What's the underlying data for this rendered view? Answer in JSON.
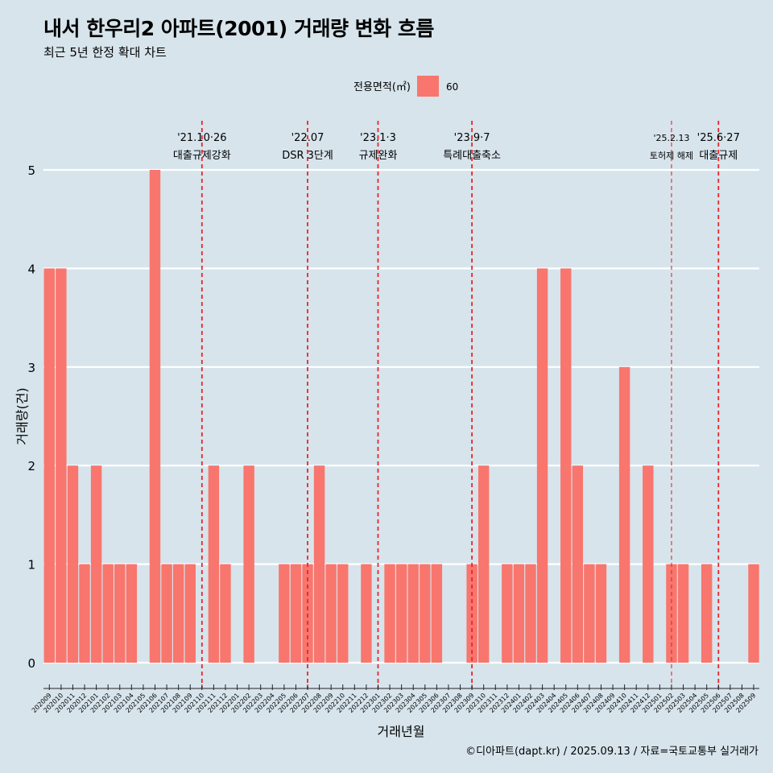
{
  "chart_data": {
    "type": "bar",
    "title": "내서 한우리2 아파트(2001) 거래량 변화 흐름",
    "subtitle": "최근 5년 한정 확대 차트",
    "xlabel": "거래년월",
    "ylabel": "거래량(건)",
    "ylim": [
      0,
      5
    ],
    "yticks": [
      0,
      1,
      2,
      3,
      4,
      5
    ],
    "grid": true,
    "legend": {
      "title": "전용면적(㎡)",
      "position": "top",
      "items": [
        {
          "label": "60",
          "color": "#f8766d"
        }
      ]
    },
    "categories": [
      "202009",
      "202010",
      "202011",
      "202012",
      "202101",
      "202102",
      "202103",
      "202104",
      "202105",
      "202106",
      "202107",
      "202108",
      "202109",
      "202110",
      "202111",
      "202112",
      "202201",
      "202202",
      "202203",
      "202204",
      "202205",
      "202206",
      "202207",
      "202208",
      "202209",
      "202210",
      "202211",
      "202212",
      "202301",
      "202302",
      "202303",
      "202304",
      "202305",
      "202306",
      "202307",
      "202308",
      "202309",
      "202310",
      "202311",
      "202312",
      "202401",
      "202402",
      "202403",
      "202404",
      "202405",
      "202406",
      "202407",
      "202408",
      "202409",
      "202410",
      "202411",
      "202412",
      "202501",
      "202502",
      "202503",
      "202504",
      "202505",
      "202506",
      "202507",
      "202508",
      "202509"
    ],
    "series": [
      {
        "name": "60",
        "color": "#f8766d",
        "values": [
          4,
          4,
          2,
          1,
          2,
          1,
          1,
          1,
          0,
          5,
          1,
          1,
          1,
          0,
          2,
          1,
          0,
          2,
          0,
          0,
          1,
          1,
          1,
          2,
          1,
          1,
          0,
          1,
          0,
          1,
          1,
          1,
          1,
          1,
          0,
          0,
          1,
          2,
          0,
          1,
          1,
          1,
          4,
          0,
          4,
          2,
          1,
          1,
          0,
          3,
          0,
          2,
          0,
          1,
          1,
          0,
          1,
          0,
          0,
          0,
          1
        ]
      }
    ],
    "annotations": [
      {
        "x": "202110",
        "date": "'21.10·26",
        "label": "대출규제강화",
        "style": "major"
      },
      {
        "x": "202207",
        "date": "'22.07",
        "label": "DSR 3단계",
        "style": "major"
      },
      {
        "x": "202301",
        "date": "'23.1·3",
        "label": "규제완화",
        "style": "major"
      },
      {
        "x": "202309",
        "date": "'23.9·7",
        "label": "특례대출축소",
        "style": "major"
      },
      {
        "x": "202502",
        "date": "'25.2.13",
        "label": "토허제 해제",
        "style": "minor"
      },
      {
        "x": "202506",
        "date": "'25.6·27",
        "label": "대출규제",
        "style": "major"
      }
    ]
  },
  "caption": "©디아파트(dapt.kr) / 2025.09.13 / 자료=국토교통부 실거래가"
}
